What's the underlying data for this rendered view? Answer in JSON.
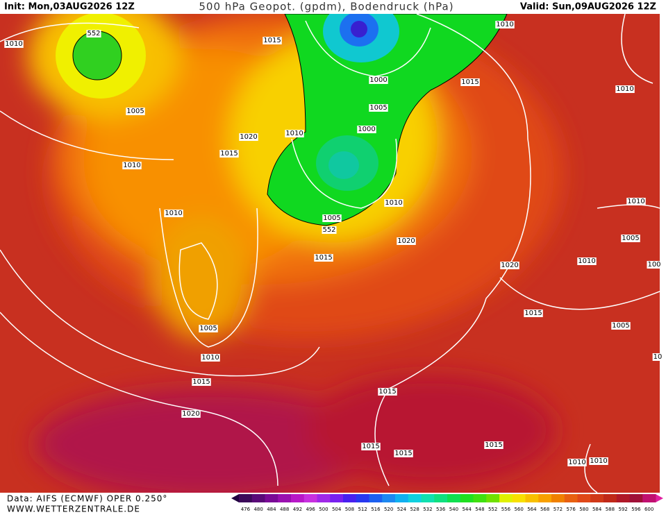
{
  "header": {
    "init": "Init: Mon,03AUG2026 12Z",
    "title": "500 hPa Geopot. (gpdm), Bodendruck (hPa)",
    "valid": "Valid: Sun,09AUG2026 12Z"
  },
  "footer": {
    "source": "Data: AIFS (ECMWF) OPER 0.250°",
    "site": "WWW.WETTERZENTRALE.DE"
  },
  "colorbar": {
    "labels": [
      "476",
      "480",
      "484",
      "488",
      "492",
      "496",
      "500",
      "504",
      "508",
      "512",
      "516",
      "520",
      "524",
      "528",
      "532",
      "536",
      "540",
      "544",
      "548",
      "552",
      "556",
      "560",
      "564",
      "568",
      "572",
      "576",
      "580",
      "584",
      "588",
      "592",
      "596",
      "600"
    ],
    "colors": [
      "#3c0a5a",
      "#5a0a78",
      "#7a0a96",
      "#9a10b0",
      "#b818c8",
      "#c830e0",
      "#a028e8",
      "#7820f0",
      "#4820f0",
      "#2838f0",
      "#1c60f0",
      "#1c88f0",
      "#10b0f0",
      "#10d0e0",
      "#10e0b0",
      "#10e080",
      "#10e050",
      "#20e020",
      "#40e010",
      "#70e000",
      "#e0f000",
      "#f8e000",
      "#f8c000",
      "#f8a000",
      "#f08000",
      "#e86010",
      "#e04818",
      "#d03818",
      "#c02818",
      "#b01828",
      "#a01038",
      "#c01070"
    ]
  },
  "isobar_labels": [
    "552",
    "1010",
    "1005",
    "1010",
    "1015",
    "1020",
    "1015",
    "1010",
    "1000",
    "1005",
    "1000",
    "1010",
    "1015",
    "1010",
    "1010",
    "1005",
    "552",
    "1010",
    "1020",
    "1015",
    "1020",
    "1010",
    "1010",
    "1005",
    "1005",
    "1010",
    "1015",
    "1020",
    "1015",
    "1005",
    "1015",
    "1015",
    "1015",
    "1015",
    "1010",
    "1010",
    "100",
    "10"
  ]
}
